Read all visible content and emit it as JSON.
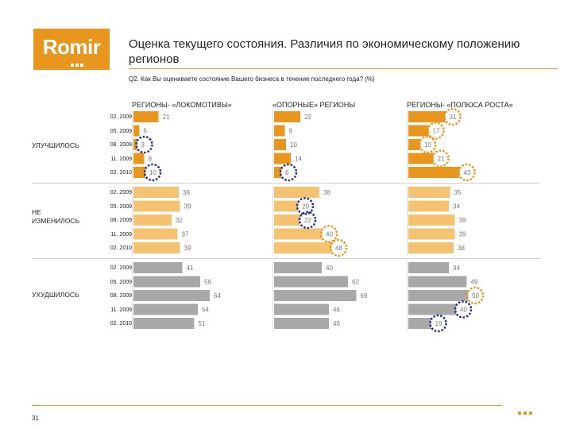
{
  "logo": {
    "text": "Romir"
  },
  "header": {
    "title": "Оценка текущего состояния. Различия по экономическому положению регионов",
    "question": "Q2. Как Вы оцениваете состояние Вашего бизнеса в течение последнего года? (%)"
  },
  "page_number": "31",
  "colors": {
    "improved": "#e8961e",
    "unchanged": "#f5c271",
    "worsened": "#a8a8a8",
    "circle_blue": "#1f2f8f",
    "circle_orange": "#e8961e"
  },
  "chart_data": {
    "type": "bar",
    "orientation": "horizontal",
    "panels": [
      "РЕГИОНЫ- «ЛОКОМОТИВЫ»",
      "«ОПОРНЫЕ» РЕГИОНЫ",
      "РЕГИОНЫ- «ПОЛЮСА РОСТА»"
    ],
    "periods": [
      "02. 2009",
      "05. 2009",
      "08. 2009",
      "11. 2009",
      "02. 2010"
    ],
    "groups": [
      {
        "label": "УЛУЧШИЛОСЬ",
        "values": [
          [
            21,
            5,
            3,
            9,
            10
          ],
          [
            22,
            9,
            10,
            14,
            6
          ],
          [
            31,
            17,
            10,
            21,
            43
          ]
        ]
      },
      {
        "label": "НЕ ИЗМЕНИЛОСЬ",
        "values": [
          [
            38,
            39,
            32,
            37,
            39
          ],
          [
            38,
            20,
            22,
            40,
            48
          ],
          [
            35,
            34,
            39,
            39,
            38
          ]
        ]
      },
      {
        "label": "УХУДШИЛОСЬ",
        "values": [
          [
            41,
            56,
            64,
            54,
            51
          ],
          [
            40,
            62,
            69,
            46,
            46
          ],
          [
            34,
            49,
            50,
            40,
            19
          ]
        ]
      }
    ],
    "highlights": [
      {
        "group": 0,
        "panel": 0,
        "row": 2,
        "color": "blue"
      },
      {
        "group": 0,
        "panel": 0,
        "row": 4,
        "color": "blue"
      },
      {
        "group": 0,
        "panel": 1,
        "row": 4,
        "color": "blue"
      },
      {
        "group": 0,
        "panel": 2,
        "row": 0,
        "color": "orange"
      },
      {
        "group": 0,
        "panel": 2,
        "row": 1,
        "color": "orange"
      },
      {
        "group": 0,
        "panel": 2,
        "row": 2,
        "color": "orange"
      },
      {
        "group": 0,
        "panel": 2,
        "row": 3,
        "color": "orange"
      },
      {
        "group": 0,
        "panel": 2,
        "row": 4,
        "color": "orange"
      },
      {
        "group": 1,
        "panel": 1,
        "row": 1,
        "color": "blue"
      },
      {
        "group": 1,
        "panel": 1,
        "row": 2,
        "color": "blue"
      },
      {
        "group": 1,
        "panel": 1,
        "row": 3,
        "color": "orange"
      },
      {
        "group": 1,
        "panel": 1,
        "row": 4,
        "color": "orange"
      },
      {
        "group": 2,
        "panel": 2,
        "row": 2,
        "color": "orange"
      },
      {
        "group": 2,
        "panel": 2,
        "row": 3,
        "color": "blue"
      },
      {
        "group": 2,
        "panel": 2,
        "row": 4,
        "color": "blue"
      }
    ]
  }
}
